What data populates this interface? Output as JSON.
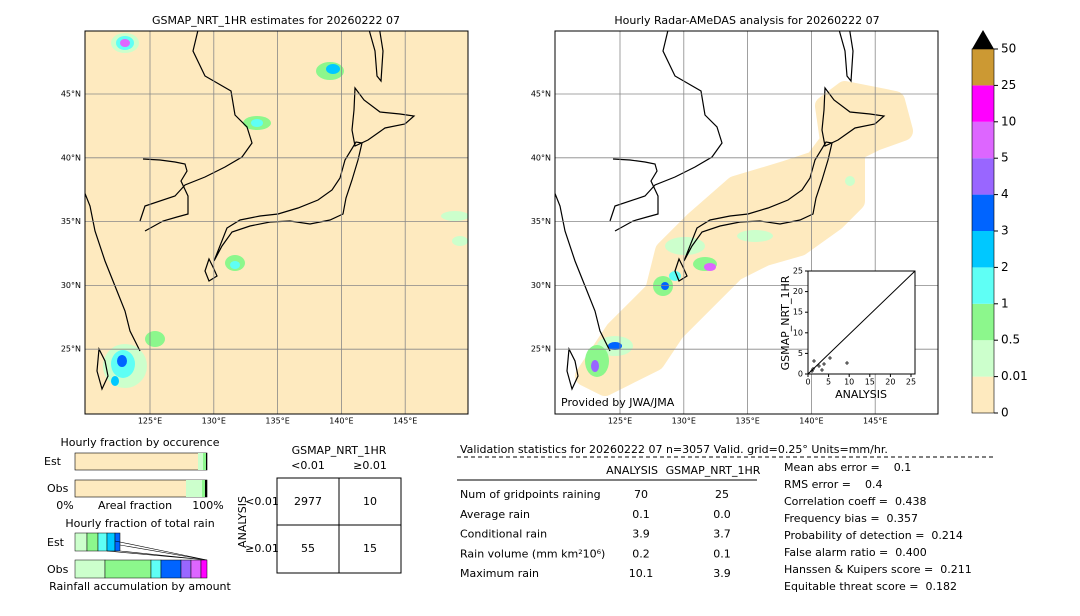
{
  "left_map": {
    "title": "GSMAP_NRT_1HR estimates for 20260222 07",
    "lat_labels": [
      "45°N",
      "40°N",
      "35°N",
      "30°N",
      "25°N"
    ],
    "lon_labels": [
      "125°E",
      "130°E",
      "135°E",
      "140°E",
      "145°E"
    ]
  },
  "right_map": {
    "title": "Hourly Radar-AMeDAS analysis for 20260222 07",
    "lat_labels": [
      "45°N",
      "40°N",
      "35°N",
      "30°N",
      "25°N"
    ],
    "lon_labels": [
      "125°E",
      "130°E",
      "135°E",
      "140°E",
      "145°E"
    ],
    "credit": "Provided by JWA/JMA",
    "inset": {
      "xlabel": "ANALYSIS",
      "ylabel": "GSMAP_NRT_1HR",
      "xticks": [
        "0",
        "5",
        "10",
        "15",
        "20",
        "25"
      ],
      "yticks": [
        "0",
        "5",
        "10",
        "15",
        "20",
        "25"
      ]
    }
  },
  "colorbar": {
    "levels": [
      "0",
      "0.01",
      "0.5",
      "1",
      "2",
      "3",
      "4",
      "5",
      "10",
      "25",
      "50"
    ]
  },
  "occurrence": {
    "title": "Hourly fraction by occurence",
    "rows": [
      "Est",
      "Obs"
    ],
    "axis": [
      "0%",
      "Areal fraction",
      "100%"
    ]
  },
  "total_rain": {
    "title": "Hourly fraction of total rain",
    "rows": [
      "Est",
      "Obs"
    ],
    "xlabel": "Rainfall accumulation by amount"
  },
  "contingency": {
    "title": "GSMAP_NRT_1HR",
    "columns": [
      "<0.01",
      "≥0.01"
    ],
    "ylabel": "ANALYSIS",
    "rows": [
      "<0.01",
      "≥0.01"
    ],
    "cells": [
      [
        "2977",
        "10"
      ],
      [
        "55",
        "15"
      ]
    ]
  },
  "validation": {
    "header": "Validation statistics for 20260222 07  n=3057 Valid. grid=0.25° Units=mm/hr.",
    "columns": [
      "ANALYSIS",
      "GSMAP_NRT_1HR"
    ],
    "rows": [
      [
        "Num of gridpoints raining",
        "70",
        "25"
      ],
      [
        "Average rain",
        "0.1",
        "0.0"
      ],
      [
        "Conditional rain",
        "3.9",
        "3.7"
      ],
      [
        "Rain volume (mm km²10⁶)",
        "0.2",
        "0.1"
      ],
      [
        "Maximum rain",
        "10.1",
        "3.9"
      ]
    ],
    "scores": [
      "Mean abs error =    0.1",
      "RMS error =    0.4",
      "Correlation coeff =  0.438",
      "Frequency bias =  0.357",
      "Probability of detection =  0.214",
      "False alarm ratio =  0.400",
      "Hanssen & Kuipers score =  0.211",
      "Equitable threat score =  0.182"
    ]
  }
}
